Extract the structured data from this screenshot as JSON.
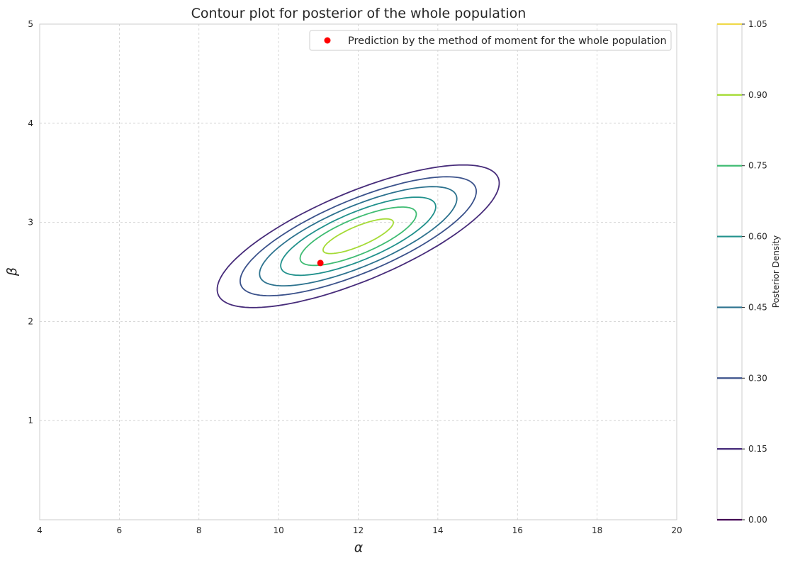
{
  "chart_data": {
    "type": "contour",
    "title": "Contour plot for posterior of the whole population",
    "xlabel": "α",
    "ylabel": "β",
    "xlim": [
      4,
      20
    ],
    "ylim": [
      0,
      5
    ],
    "xticks": [
      4,
      6,
      8,
      10,
      12,
      14,
      16,
      18,
      20
    ],
    "xtick_labels": [
      "4",
      "6",
      "8",
      "10",
      "12",
      "14",
      "16",
      "18",
      "20"
    ],
    "yticks": [
      1,
      2,
      3,
      4,
      5
    ],
    "ytick_labels": [
      "1",
      "2",
      "3",
      "4",
      "5"
    ],
    "grid": true,
    "legend_placement": "top-right",
    "point": {
      "label": "Prediction by the method of moment for the whole population",
      "x": 11.05,
      "y": 2.59,
      "color": "#ff0000"
    },
    "posterior_center": {
      "alpha": 12.0,
      "beta": 2.86
    },
    "contour_levels": [
      {
        "level": 0.15,
        "color": "#472c7a",
        "semi_major": 4.0,
        "semi_minor": 0.425,
        "angle_deg": 29.6
      },
      {
        "level": 0.3,
        "color": "#3b528b",
        "semi_major": 3.35,
        "semi_minor": 0.35,
        "angle_deg": 29.6
      },
      {
        "level": 0.45,
        "color": "#2c728e",
        "semi_major": 2.8,
        "semi_minor": 0.29,
        "angle_deg": 29.6
      },
      {
        "level": 0.6,
        "color": "#21918c",
        "semi_major": 2.2,
        "semi_minor": 0.23,
        "angle_deg": 29.6
      },
      {
        "level": 0.75,
        "color": "#3fbc73",
        "semi_major": 1.65,
        "semi_minor": 0.17,
        "angle_deg": 29.6
      },
      {
        "level": 0.9,
        "color": "#a5db36",
        "semi_major": 1.0,
        "semi_minor": 0.095,
        "angle_deg": 29.6
      }
    ],
    "colorbar": {
      "label": "Posterior Density",
      "range": [
        0,
        1.05
      ],
      "ticks": [
        {
          "value": 0.0,
          "label": "0.00",
          "color": "#440154"
        },
        {
          "value": 0.15,
          "label": "0.15",
          "color": "#472c7a"
        },
        {
          "value": 0.3,
          "label": "0.30",
          "color": "#3b528b"
        },
        {
          "value": 0.45,
          "label": "0.45",
          "color": "#2c728e"
        },
        {
          "value": 0.6,
          "label": "0.60",
          "color": "#21918c"
        },
        {
          "value": 0.75,
          "label": "0.75",
          "color": "#3fbc73"
        },
        {
          "value": 0.9,
          "label": "0.90",
          "color": "#a5db36"
        },
        {
          "value": 1.05,
          "label": "1.05",
          "color": "#f0d94a"
        }
      ]
    }
  }
}
